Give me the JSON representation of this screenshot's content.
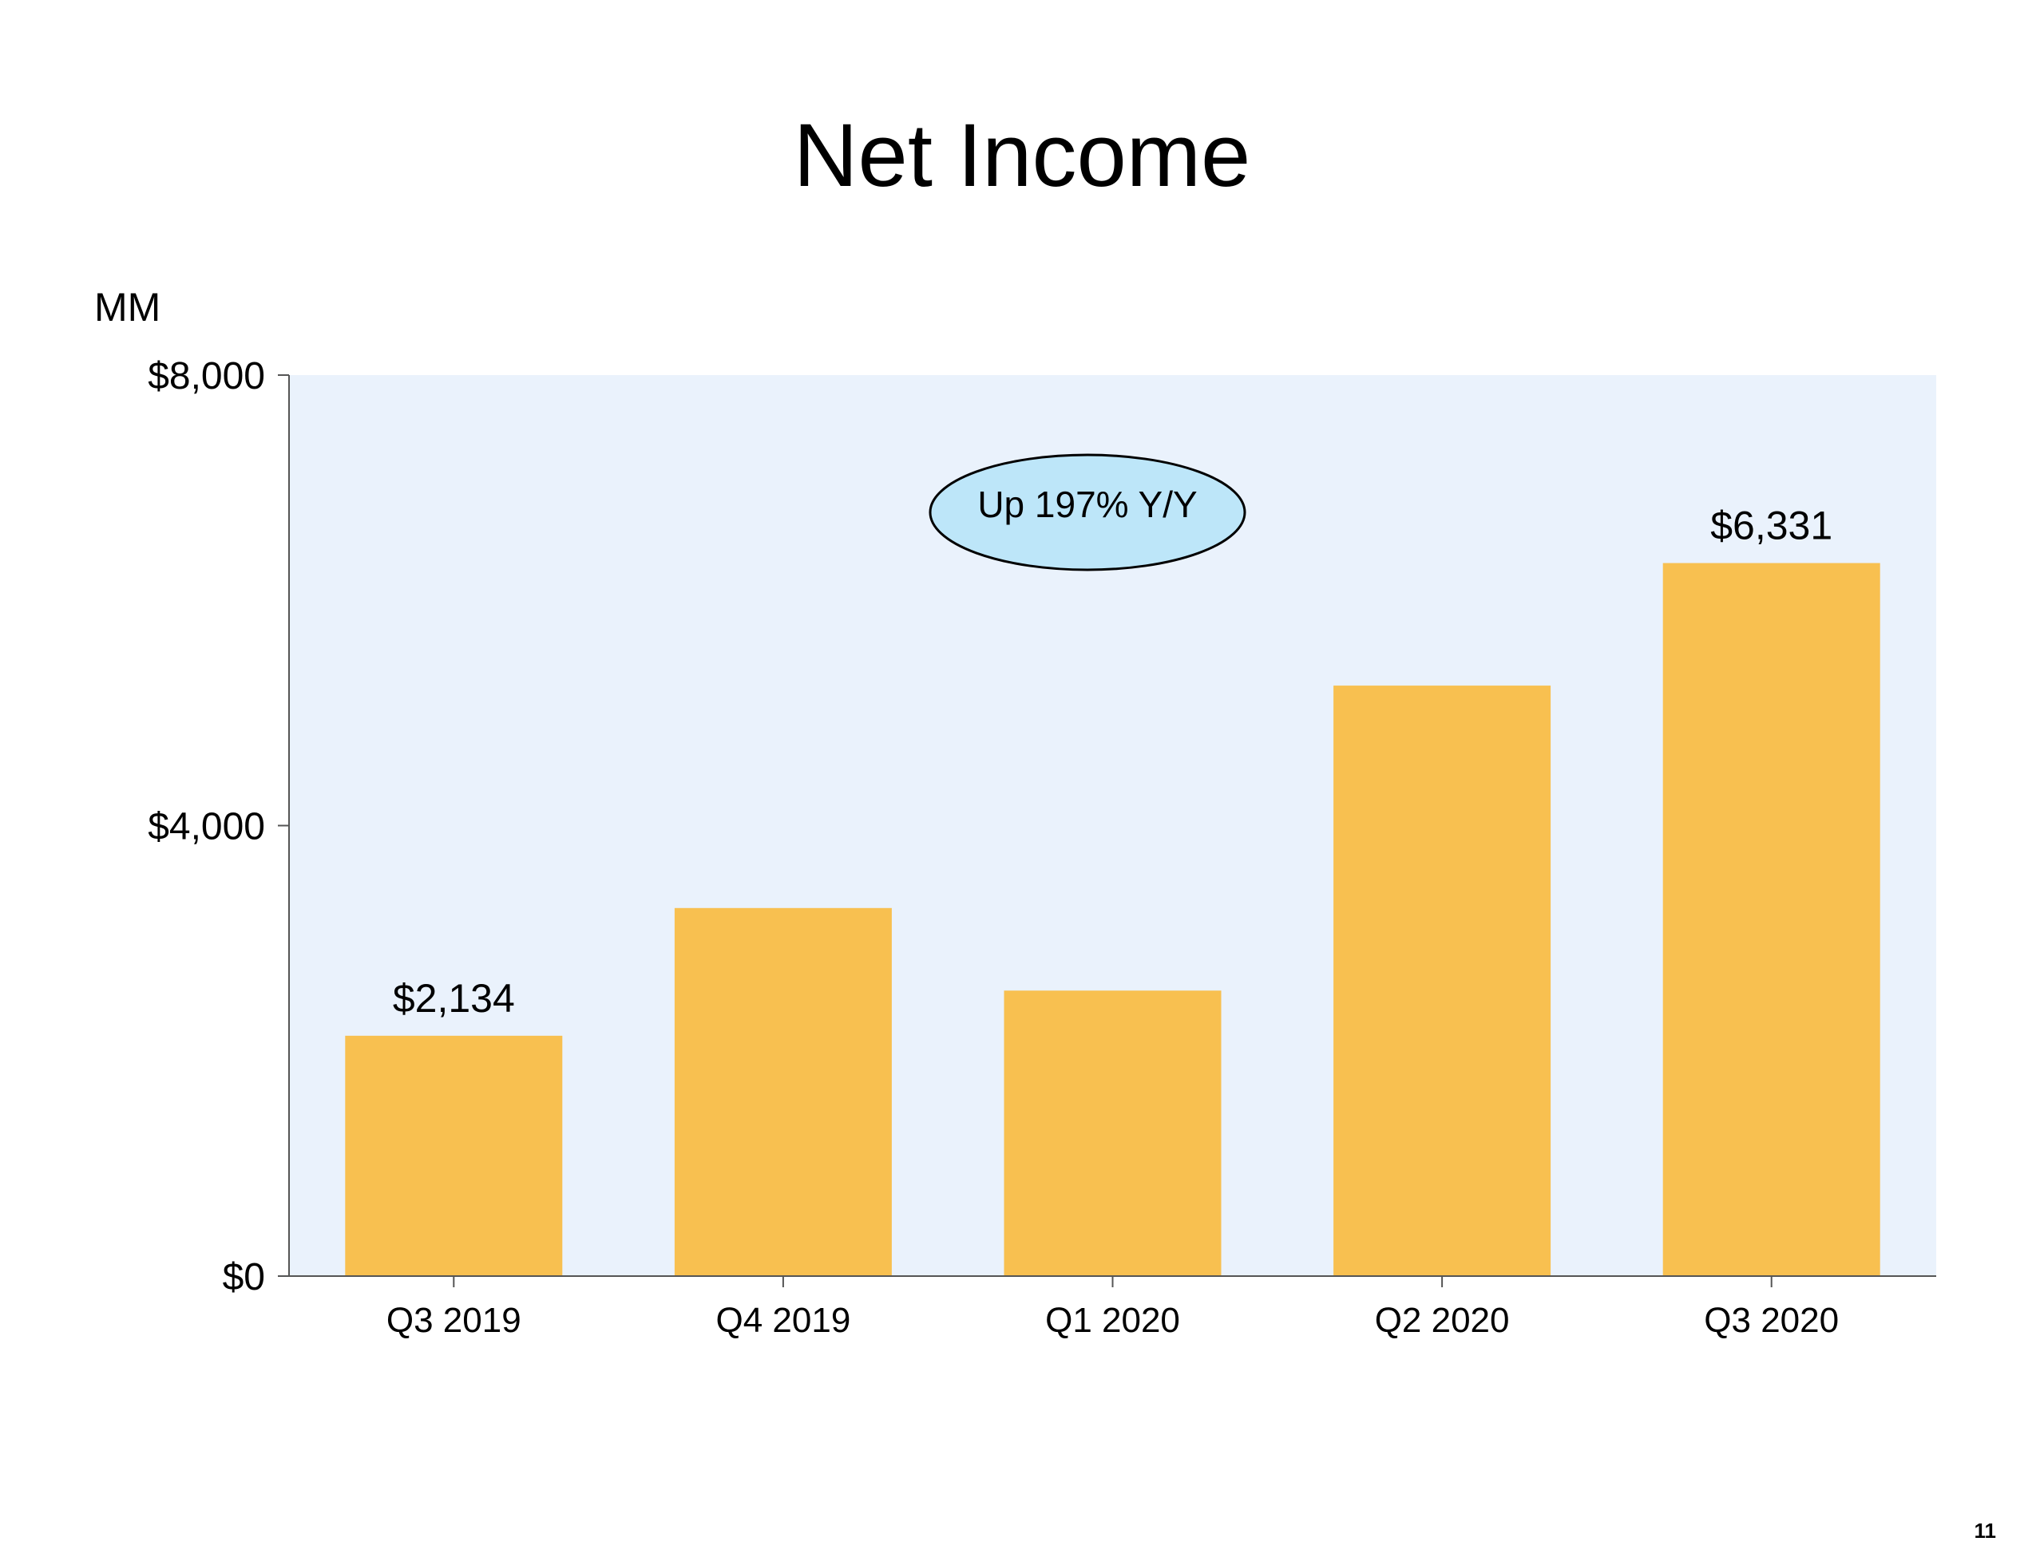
{
  "page": {
    "number": "11"
  },
  "callout": {
    "text": "Up 197% Y/Y"
  },
  "chart_data": {
    "type": "bar",
    "title": "Net Income",
    "ylabel": "MM",
    "xlabel": "",
    "categories": [
      "Q3 2019",
      "Q4 2019",
      "Q1 2020",
      "Q2 2020",
      "Q3 2020"
    ],
    "values": [
      2134,
      3268,
      2535,
      5243,
      6331
    ],
    "data_labels": [
      "$2,134",
      "",
      "",
      "",
      "$6,331"
    ],
    "ylim": [
      0,
      8000
    ],
    "yticks": [
      0,
      4000,
      8000
    ],
    "ytick_labels": [
      "$0",
      "$4,000",
      "$8,000"
    ],
    "grid": false,
    "legend": "none",
    "colors": {
      "bar": "#F8C050",
      "plot_background": "#EAF2FC",
      "callout_fill": "#BDE6F9",
      "axis": "#555555"
    }
  }
}
